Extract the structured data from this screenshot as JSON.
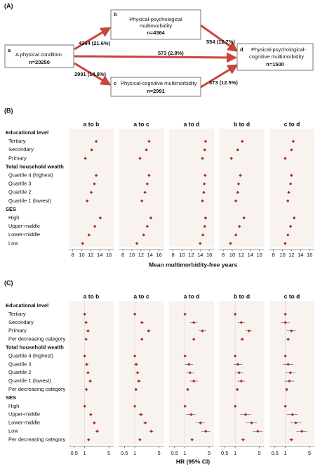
{
  "diagram": {
    "label": "(A)",
    "nodes": [
      {
        "id": "a",
        "lines": [
          "A physical condition"
        ],
        "n": "n=20250"
      },
      {
        "id": "b",
        "lines": [
          "Physical-psychological",
          "multimorbidity"
        ],
        "n": "n=4364"
      },
      {
        "id": "c",
        "lines": [
          "Physical-cognitive multimorbidity"
        ],
        "n": "n=2991"
      },
      {
        "id": "d",
        "lines": [
          "Physical-psychological-",
          "cognitive multimorbidity"
        ],
        "n": "n=1500"
      }
    ],
    "edges": [
      {
        "label": "4364 (21.6%)"
      },
      {
        "label": "2991 (14.8%)"
      },
      {
        "label": "573 (2.8%)"
      },
      {
        "label": "554 (12.7%)"
      },
      {
        "label": "373 (12.5%)"
      }
    ]
  },
  "chart_data": [
    {
      "type": "forest",
      "label": "(B)",
      "xlabel": "Mean multimorbidity-free years",
      "groups": [
        {
          "name": "Educational level",
          "categories": [
            "Tertiary",
            "Secondary",
            "Primary"
          ]
        },
        {
          "name": "Total household wealth",
          "categories": [
            "Quartile 4 (highest)",
            "Quartile 3",
            "Quartile 2",
            "Quartile 1 (lowest)"
          ]
        },
        {
          "name": "SES",
          "categories": [
            "High",
            "Upper-middle",
            "Lower-middle",
            "Low"
          ]
        }
      ],
      "xlim": [
        7.6,
        16.6
      ],
      "xticks": [
        8,
        10,
        12,
        14,
        16
      ],
      "log": false,
      "series": [
        {
          "name": "a to b",
          "color": "#a8282e",
          "values": [
            13.2,
            12.2,
            10.8,
            13.2,
            12.8,
            12.1,
            11.2,
            14.1,
            12.9,
            11.6,
            10.2
          ]
        },
        {
          "name": "a to c",
          "color": "#a8282e",
          "values": [
            13.8,
            13.2,
            11.8,
            13.8,
            13.4,
            12.9,
            12.2,
            14.2,
            13.4,
            12.6,
            11.1
          ]
        },
        {
          "name": "a to d",
          "color": "#a8282e",
          "values": [
            15.2,
            15.0,
            14.5,
            15.1,
            14.9,
            14.8,
            14.5,
            15.2,
            15.0,
            14.6,
            14.0
          ]
        },
        {
          "name": "b to d",
          "color": "#a8282e",
          "values": [
            12.2,
            11.2,
            9.8,
            11.8,
            11.4,
            11.2,
            10.8,
            12.6,
            11.6,
            10.8,
            9.6
          ]
        },
        {
          "name": "c to d",
          "color": "#a8282e",
          "values": [
            12.4,
            12.0,
            10.6,
            12.0,
            11.8,
            11.4,
            11.2,
            12.6,
            11.8,
            11.2,
            10.6
          ]
        }
      ]
    },
    {
      "type": "forest",
      "label": "(C)",
      "xlabel": "HR (95% CI)",
      "groups": [
        {
          "name": "Educational level",
          "categories": [
            "Tertiary",
            "Secondary",
            "Primary",
            "Per decreasing category"
          ]
        },
        {
          "name": "Total household wealth",
          "categories": [
            "Quartile 4 (highest)",
            "Quartile 3",
            "Quartile 2",
            "Quartile 1 (lowest)",
            "Per decreasing category"
          ]
        },
        {
          "name": "SES",
          "categories": [
            "High",
            "Upper-middle",
            "Lower-middle",
            "Low",
            "Per decreasing category"
          ]
        }
      ],
      "xlim": [
        0.4,
        6
      ],
      "xticks": [
        0.5,
        1,
        5
      ],
      "log": true,
      "reference_line": 1,
      "series": [
        {
          "name": "a to b",
          "color": "#a8282e",
          "values": [
            1,
            1.1,
            1.25,
            1.1,
            1,
            1.15,
            1.25,
            1.45,
            1.12,
            1,
            1.5,
            1.9,
            2.3,
            1.3
          ],
          "lower": [
            null,
            1.0,
            1.1,
            1.05,
            null,
            1.02,
            1.1,
            1.3,
            1.08,
            null,
            1.35,
            1.7,
            2.05,
            1.25
          ],
          "upper": [
            null,
            1.2,
            1.4,
            1.15,
            null,
            1.3,
            1.4,
            1.6,
            1.16,
            null,
            1.65,
            2.1,
            2.6,
            1.35
          ]
        },
        {
          "name": "a to c",
          "color": "#a8282e",
          "values": [
            1,
            1.6,
            2.5,
            1.6,
            1,
            1.1,
            1.2,
            1.3,
            1.08,
            1,
            1.5,
            2.0,
            3.0,
            1.4
          ],
          "lower": [
            null,
            1.4,
            2.2,
            1.5,
            null,
            0.95,
            1.05,
            1.15,
            1.03,
            null,
            1.3,
            1.75,
            2.6,
            1.33
          ],
          "upper": [
            null,
            1.85,
            2.85,
            1.7,
            null,
            1.25,
            1.35,
            1.5,
            1.13,
            null,
            1.75,
            2.3,
            3.45,
            1.48
          ]
        },
        {
          "name": "a to d",
          "color": "#a8282e",
          "values": [
            1,
            1.8,
            3.2,
            1.8,
            1,
            1.3,
            1.4,
            1.8,
            1.2,
            1,
            1.5,
            2.8,
            4.0,
            1.6
          ],
          "lower": [
            null,
            1.4,
            2.5,
            1.6,
            null,
            1.0,
            1.1,
            1.4,
            1.1,
            null,
            1.1,
            2.1,
            3.0,
            1.45
          ],
          "upper": [
            null,
            2.3,
            4.1,
            2.0,
            null,
            1.7,
            1.8,
            2.3,
            1.3,
            null,
            2.0,
            3.7,
            5.3,
            1.75
          ]
        },
        {
          "name": "b to d",
          "color": "#a8282e",
          "values": [
            1,
            1.5,
            2.5,
            1.6,
            1,
            1.2,
            1.3,
            1.5,
            1.15,
            1,
            2.0,
            3.0,
            4.5,
            1.7
          ],
          "lower": [
            null,
            1.2,
            2.0,
            1.4,
            null,
            0.9,
            1.0,
            1.15,
            1.05,
            null,
            1.4,
            2.1,
            3.2,
            1.5
          ],
          "upper": [
            null,
            1.9,
            3.1,
            1.8,
            null,
            1.6,
            1.7,
            1.95,
            1.25,
            null,
            2.85,
            4.3,
            6.3,
            1.9
          ]
        },
        {
          "name": "c to d",
          "color": "#a8282e",
          "values": [
            1,
            1.0,
            1.5,
            1.2,
            1,
            1.2,
            1.4,
            1.3,
            1.1,
            1,
            1.6,
            2.0,
            3.0,
            1.5
          ],
          "lower": [
            null,
            0.75,
            1.1,
            1.05,
            null,
            0.85,
            1.0,
            0.95,
            1.0,
            null,
            1.1,
            1.4,
            2.1,
            1.3
          ],
          "upper": [
            null,
            1.35,
            2.0,
            1.4,
            null,
            1.7,
            1.95,
            1.8,
            1.2,
            null,
            2.3,
            2.9,
            4.3,
            1.7
          ]
        }
      ]
    }
  ]
}
